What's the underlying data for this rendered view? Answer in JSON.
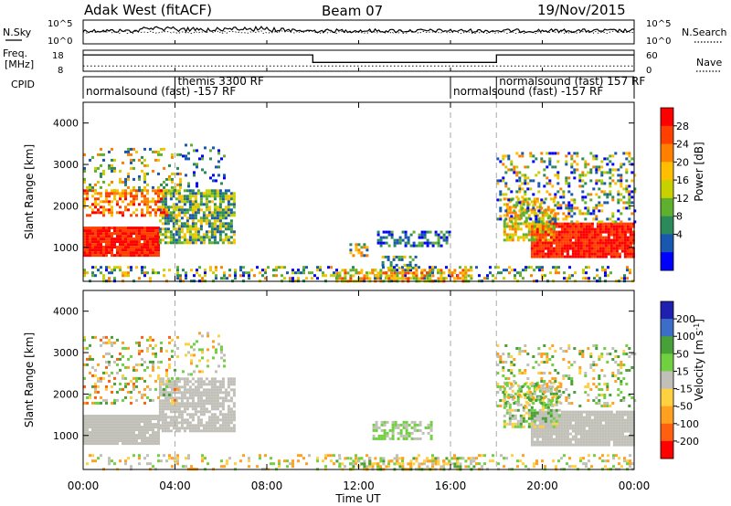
{
  "header": {
    "station": "Adak West (fitACF)",
    "beam": "Beam 07",
    "date": "19/Nov/2015"
  },
  "panels": {
    "nsky": {
      "left_label": "N.Sky",
      "right_label": "N.Search",
      "left_ticks": [
        "10^5",
        "10^0"
      ],
      "right_ticks": [
        "10^5",
        "10^0"
      ]
    },
    "freq": {
      "left_label_1": "Freq.",
      "left_label_2": "[MHz]",
      "right_label": "Nave",
      "left_ticks": [
        "18",
        "8"
      ],
      "right_ticks": [
        "60",
        "0"
      ]
    },
    "cpid": {
      "label": "CPID",
      "segments": [
        {
          "label": "normalsound (fast) -157 RF",
          "start_h": 0,
          "end_h": 4
        },
        {
          "label": "themis 3300 RF",
          "start_h": 4,
          "end_h": 16
        },
        {
          "label": "normalsound (fast) -157 RF",
          "start_h": 16,
          "end_h": 18
        },
        {
          "label": "normalsound (fast) 157 RF",
          "start_h": 18,
          "end_h": 24
        }
      ]
    },
    "power": {
      "ylabel": "Slant Range [km]",
      "colorbar_label": "Power [dB]",
      "colorbar_ticks": [
        "28",
        "24",
        "20",
        "16",
        "12",
        "8",
        "4"
      ]
    },
    "velocity": {
      "ylabel": "Slant Range [km]",
      "colorbar_label": "Velocity [m s",
      "colorbar_label_sup": "-1",
      "colorbar_label_end": "]",
      "colorbar_ticks": [
        "200",
        "100",
        "50",
        "15",
        "-15",
        "-50",
        "-100",
        "-200"
      ]
    }
  },
  "xaxis": {
    "label": "Time UT",
    "ticks": [
      "00:00",
      "04:00",
      "08:00",
      "12:00",
      "16:00",
      "20:00",
      "00:00"
    ]
  },
  "chart_data": {
    "type": "heatmap",
    "x_unit": "hours UT",
    "xlim": [
      0,
      24
    ],
    "ylim": [
      180,
      4500
    ],
    "y_ticks": [
      1000,
      2000,
      3000,
      4000
    ],
    "y_tick_labels": [
      "1000",
      "2000",
      "3000",
      "4000"
    ],
    "nsky_level": 0.55,
    "freq_steps": [
      {
        "start_h": 0,
        "end_h": 10,
        "level": 0.78
      },
      {
        "start_h": 10,
        "end_h": 18,
        "level": 0.42
      },
      {
        "start_h": 18,
        "end_h": 24,
        "level": 0.78
      }
    ],
    "nave_level": 0.25,
    "vertical_markers_h": [
      4,
      16,
      18
    ],
    "power_colors": [
      "#ff0000",
      "#ff4000",
      "#ff8000",
      "#ffbf00",
      "#c8d000",
      "#60b030",
      "#2a8a5a",
      "#1858b0",
      "#0000ff"
    ],
    "velocity_colors": [
      "#2020b0",
      "#3c6ec8",
      "#48a038",
      "#70d040",
      "#c0c0b8",
      "#ffd040",
      "#ffa020",
      "#ff6010",
      "#ff0000"
    ],
    "power_regions": [
      {
        "t0": 0.0,
        "t1": 3.3,
        "r0": 800,
        "r1": 1500,
        "dens": 0.95,
        "pow": [
          0,
          1
        ]
      },
      {
        "t0": 3.3,
        "t1": 6.6,
        "r0": 1100,
        "r1": 2400,
        "dens": 0.75,
        "pow": [
          3,
          7
        ]
      },
      {
        "t0": 0.0,
        "t1": 3.6,
        "r0": 1800,
        "r1": 2400,
        "dens": 0.55,
        "pow": [
          0,
          3
        ]
      },
      {
        "t0": 0.0,
        "t1": 4.2,
        "r0": 2400,
        "r1": 3400,
        "dens": 0.22,
        "pow": [
          2,
          7
        ]
      },
      {
        "t0": 4.3,
        "t1": 6.2,
        "r0": 2500,
        "r1": 3500,
        "dens": 0.18,
        "pow": [
          5,
          8
        ]
      },
      {
        "t0": 0.0,
        "t1": 24.0,
        "r0": 200,
        "r1": 550,
        "dens": 0.28,
        "pow": [
          2,
          8
        ]
      },
      {
        "t0": 11.0,
        "t1": 17.0,
        "r0": 200,
        "r1": 480,
        "dens": 0.5,
        "pow": [
          1,
          5
        ]
      },
      {
        "t0": 12.8,
        "t1": 16.0,
        "r0": 1050,
        "r1": 1400,
        "dens": 0.55,
        "pow": [
          5,
          8
        ]
      },
      {
        "t0": 11.6,
        "t1": 12.4,
        "r0": 800,
        "r1": 1100,
        "dens": 0.45,
        "pow": [
          2,
          7
        ]
      },
      {
        "t0": 13.0,
        "t1": 14.5,
        "r0": 480,
        "r1": 800,
        "dens": 0.35,
        "pow": [
          3,
          7
        ]
      },
      {
        "t0": 19.5,
        "t1": 24.0,
        "r0": 800,
        "r1": 1600,
        "dens": 0.95,
        "pow": [
          0,
          1
        ]
      },
      {
        "t0": 18.3,
        "t1": 20.5,
        "r0": 1200,
        "r1": 2200,
        "dens": 0.6,
        "pow": [
          2,
          5
        ]
      },
      {
        "t0": 18.0,
        "t1": 24.0,
        "r0": 1600,
        "r1": 3300,
        "dens": 0.3,
        "pow": [
          2,
          8
        ]
      }
    ],
    "velocity_regions": [
      {
        "t0": 0.0,
        "t1": 3.3,
        "r0": 800,
        "r1": 1500,
        "dens": 0.95,
        "vel": [
          4,
          4
        ]
      },
      {
        "t0": 3.3,
        "t1": 6.6,
        "r0": 1100,
        "r1": 2400,
        "dens": 0.8,
        "vel": [
          4,
          4
        ]
      },
      {
        "t0": 0.0,
        "t1": 4.2,
        "r0": 1800,
        "r1": 3400,
        "dens": 0.25,
        "vel": [
          2,
          7
        ]
      },
      {
        "t0": 4.3,
        "t1": 6.2,
        "r0": 2500,
        "r1": 3500,
        "dens": 0.15,
        "vel": [
          3,
          6
        ]
      },
      {
        "t0": 0.0,
        "t1": 24.0,
        "r0": 200,
        "r1": 550,
        "dens": 0.22,
        "vel": [
          3,
          6
        ]
      },
      {
        "t0": 11.0,
        "t1": 17.0,
        "r0": 200,
        "r1": 480,
        "dens": 0.45,
        "vel": [
          2,
          6
        ]
      },
      {
        "t0": 12.6,
        "t1": 15.2,
        "r0": 950,
        "r1": 1350,
        "dens": 0.55,
        "vel": [
          3,
          4
        ]
      },
      {
        "t0": 19.5,
        "t1": 24.0,
        "r0": 800,
        "r1": 1600,
        "dens": 0.95,
        "vel": [
          4,
          4
        ]
      },
      {
        "t0": 18.3,
        "t1": 20.8,
        "r0": 1200,
        "r1": 2300,
        "dens": 0.55,
        "vel": [
          2,
          5
        ]
      },
      {
        "t0": 18.0,
        "t1": 24.0,
        "r0": 1700,
        "r1": 3200,
        "dens": 0.22,
        "vel": [
          2,
          6
        ]
      }
    ]
  }
}
